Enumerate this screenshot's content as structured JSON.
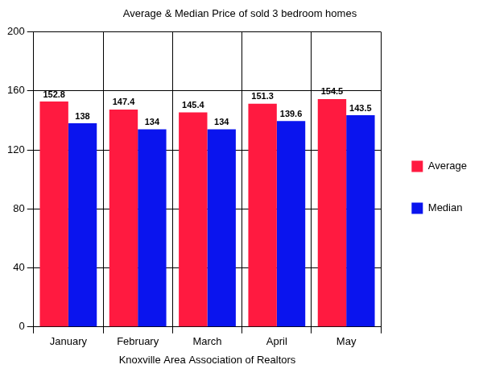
{
  "chart_data": {
    "type": "bar",
    "title": "Average & Median Price of sold 3 bedroom homes",
    "x_label": "Knoxville Area Association of Realtors",
    "categories": [
      "January",
      "February",
      "March",
      "April",
      "May"
    ],
    "series": [
      {
        "name": "Average",
        "color": "#ff1a40",
        "values": [
          152.8,
          147.4,
          145.4,
          151.3,
          154.5
        ]
      },
      {
        "name": "Median",
        "color": "#0a14ee",
        "values": [
          138,
          134,
          134,
          139.6,
          143.5
        ]
      }
    ],
    "ylim": [
      0,
      200
    ],
    "yticks": [
      0,
      40,
      80,
      120,
      160,
      200
    ],
    "grid": true,
    "legend": "right",
    "data_labels": true
  }
}
